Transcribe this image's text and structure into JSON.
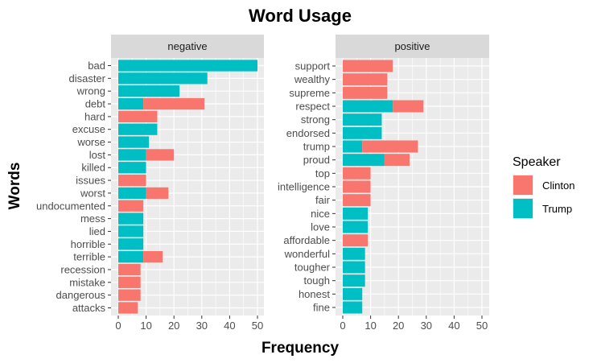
{
  "chart_data": {
    "type": "bar",
    "orientation": "horizontal",
    "stacked": true,
    "title": "Word Usage",
    "xlabel": "Frequency",
    "ylabel": "Words",
    "xlim": [
      0,
      52
    ],
    "x_ticks": [
      0,
      10,
      20,
      30,
      40,
      50
    ],
    "grid": true,
    "legend": {
      "title": "Speaker",
      "placement": "right",
      "entries": [
        {
          "name": "Clinton",
          "color": "#F8766D"
        },
        {
          "name": "Trump",
          "color": "#00BFC4"
        }
      ]
    },
    "facets": [
      {
        "label": "negative",
        "categories": [
          "bad",
          "disaster",
          "wrong",
          "debt",
          "hard",
          "excuse",
          "worse",
          "lost",
          "killed",
          "issues",
          "worst",
          "undocumented",
          "mess",
          "lied",
          "horrible",
          "terrible",
          "recession",
          "mistake",
          "dangerous",
          "attacks"
        ],
        "series": [
          {
            "name": "Trump",
            "values": [
              50,
              32,
              22,
              9,
              0,
              14,
              11,
              10,
              10,
              0,
              10,
              0,
              9,
              9,
              9,
              9,
              0,
              0,
              0,
              0
            ]
          },
          {
            "name": "Clinton",
            "values": [
              0,
              0,
              0,
              22,
              14,
              0,
              0,
              10,
              0,
              10,
              8,
              9,
              0,
              0,
              0,
              7,
              8,
              8,
              8,
              7
            ]
          }
        ]
      },
      {
        "label": "positive",
        "categories": [
          "support",
          "wealthy",
          "supreme",
          "respect",
          "strong",
          "endorsed",
          "trump",
          "proud",
          "top",
          "intelligence",
          "fair",
          "nice",
          "love",
          "affordable",
          "wonderful",
          "tougher",
          "tough",
          "honest",
          "fine"
        ],
        "series": [
          {
            "name": "Trump",
            "values": [
              0,
              0,
              0,
              18,
              14,
              14,
              7,
              15,
              0,
              0,
              0,
              9,
              9,
              0,
              8,
              8,
              8,
              7,
              7
            ]
          },
          {
            "name": "Clinton",
            "values": [
              18,
              16,
              16,
              11,
              0,
              0,
              20,
              9,
              10,
              10,
              10,
              0,
              0,
              9,
              0,
              0,
              0,
              0,
              0
            ]
          }
        ]
      }
    ]
  }
}
